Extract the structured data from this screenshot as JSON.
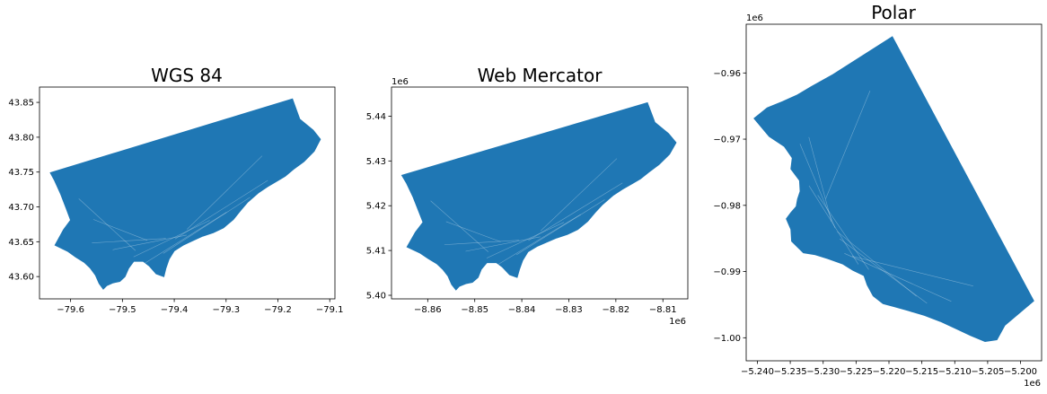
{
  "figure": {
    "background": "#ffffff"
  },
  "chart_data": [
    {
      "type": "map",
      "title": "WGS 84",
      "fill_color": "#1f77b4",
      "boundary_color": "#ffffff",
      "xlim": [
        -79.66,
        -79.09
      ],
      "ylim": [
        43.568,
        43.872
      ],
      "x_ticks": [
        -79.6,
        -79.5,
        -79.4,
        -79.3,
        -79.2,
        -79.1
      ],
      "x_tick_labels": [
        "−79.6",
        "−79.5",
        "−79.4",
        "−79.3",
        "−79.2",
        "−79.1"
      ],
      "y_ticks": [
        43.6,
        43.65,
        43.7,
        43.75,
        43.8,
        43.85
      ],
      "y_tick_labels": [
        "43.60",
        "43.65",
        "43.70",
        "43.75",
        "43.80",
        "43.85"
      ],
      "x_offset_label": "",
      "y_offset_label": "",
      "grid": false,
      "outline": [
        [
          -79.639,
          43.749
        ],
        [
          -79.172,
          43.855
        ],
        [
          -79.158,
          43.826
        ],
        [
          -79.132,
          43.81
        ],
        [
          -79.118,
          43.797
        ],
        [
          -79.13,
          43.78
        ],
        [
          -79.15,
          43.765
        ],
        [
          -79.17,
          43.754
        ],
        [
          -79.186,
          43.744
        ],
        [
          -79.202,
          43.737
        ],
        [
          -79.22,
          43.729
        ],
        [
          -79.238,
          43.72
        ],
        [
          -79.258,
          43.707
        ],
        [
          -79.272,
          43.695
        ],
        [
          -79.286,
          43.682
        ],
        [
          -79.305,
          43.67
        ],
        [
          -79.325,
          43.663
        ],
        [
          -79.345,
          43.658
        ],
        [
          -79.363,
          43.652
        ],
        [
          -79.383,
          43.645
        ],
        [
          -79.4,
          43.637
        ],
        [
          -79.41,
          43.625
        ],
        [
          -79.416,
          43.612
        ],
        [
          -79.42,
          43.6
        ],
        [
          -79.435,
          43.604
        ],
        [
          -79.448,
          43.615
        ],
        [
          -79.46,
          43.622
        ],
        [
          -79.478,
          43.622
        ],
        [
          -79.488,
          43.612
        ],
        [
          -79.495,
          43.6
        ],
        [
          -79.505,
          43.593
        ],
        [
          -79.518,
          43.591
        ],
        [
          -79.53,
          43.587
        ],
        [
          -79.537,
          43.582
        ],
        [
          -79.545,
          43.59
        ],
        [
          -79.552,
          43.602
        ],
        [
          -79.562,
          43.612
        ],
        [
          -79.573,
          43.62
        ],
        [
          -79.59,
          43.628
        ],
        [
          -79.605,
          43.636
        ],
        [
          -79.63,
          43.645
        ],
        [
          -79.614,
          43.667
        ],
        [
          -79.6,
          43.681
        ],
        [
          -79.608,
          43.697
        ],
        [
          -79.619,
          43.718
        ],
        [
          -79.631,
          43.738
        ]
      ]
    },
    {
      "type": "map",
      "title": "Web Mercator",
      "fill_color": "#1f77b4",
      "boundary_color": "#ffffff",
      "xlim": [
        -8.8677,
        -8.8047
      ],
      "ylim": [
        5.3992,
        5.4465
      ],
      "x_ticks": [
        -8.86,
        -8.85,
        -8.84,
        -8.83,
        -8.82,
        -8.81
      ],
      "x_tick_labels": [
        "−8.86",
        "−8.85",
        "−8.84",
        "−8.83",
        "−8.82",
        "−8.81"
      ],
      "y_ticks": [
        5.4,
        5.41,
        5.42,
        5.43,
        5.44
      ],
      "y_tick_labels": [
        "5.40",
        "5.41",
        "5.42",
        "5.43",
        "5.44"
      ],
      "x_offset_label": "1e6",
      "y_offset_label": "1e6",
      "grid": false,
      "outline": [
        [
          -8.8655,
          5.4268
        ],
        [
          -8.8133,
          5.443
        ],
        [
          -8.8117,
          5.4386
        ],
        [
          -8.8088,
          5.4361
        ],
        [
          -8.8072,
          5.4341
        ],
        [
          -8.8086,
          5.4315
        ],
        [
          -8.8108,
          5.4292
        ],
        [
          -8.813,
          5.4275
        ],
        [
          -8.8148,
          5.426
        ],
        [
          -8.8166,
          5.4249
        ],
        [
          -8.8186,
          5.4237
        ],
        [
          -8.8206,
          5.4223
        ],
        [
          -8.8228,
          5.4203
        ],
        [
          -8.8244,
          5.4185
        ],
        [
          -8.826,
          5.4165
        ],
        [
          -8.8281,
          5.4147
        ],
        [
          -8.8303,
          5.4136
        ],
        [
          -8.8326,
          5.4128
        ],
        [
          -8.8346,
          5.4119
        ],
        [
          -8.8368,
          5.4109
        ],
        [
          -8.8387,
          5.4097
        ],
        [
          -8.8398,
          5.4078
        ],
        [
          -8.8405,
          5.4058
        ],
        [
          -8.841,
          5.404
        ],
        [
          -8.8426,
          5.4046
        ],
        [
          -8.8441,
          5.4063
        ],
        [
          -8.8454,
          5.4073
        ],
        [
          -8.8474,
          5.4073
        ],
        [
          -8.8486,
          5.4058
        ],
        [
          -8.8493,
          5.404
        ],
        [
          -8.8505,
          5.4029
        ],
        [
          -8.8519,
          5.4026
        ],
        [
          -8.8533,
          5.402
        ],
        [
          -8.854,
          5.4012
        ],
        [
          -8.8549,
          5.4024
        ],
        [
          -8.8557,
          5.4043
        ],
        [
          -8.8568,
          5.4058
        ],
        [
          -8.858,
          5.407
        ],
        [
          -8.8599,
          5.4082
        ],
        [
          -8.8616,
          5.4094
        ],
        [
          -8.8644,
          5.4108
        ],
        [
          -8.8626,
          5.4141
        ],
        [
          -8.861,
          5.4163
        ],
        [
          -8.8619,
          5.4187
        ],
        [
          -8.8631,
          5.4219
        ],
        [
          -8.8645,
          5.425
        ]
      ]
    },
    {
      "type": "map",
      "title": "Polar",
      "fill_color": "#1f77b4",
      "boundary_color": "#ffffff",
      "xlim": [
        -5.2417,
        -5.1968
      ],
      "ylim": [
        -1.00348,
        -0.95264
      ],
      "x_ticks": [
        -5.24,
        -5.235,
        -5.23,
        -5.225,
        -5.22,
        -5.215,
        -5.21,
        -5.205,
        -5.2
      ],
      "x_tick_labels": [
        "−5.240",
        "−5.235",
        "−5.230",
        "−5.225",
        "−5.220",
        "−5.215",
        "−5.210",
        "−5.205",
        "−5.200"
      ],
      "y_ticks": [
        -0.96,
        -0.97,
        -0.98,
        -0.99,
        -1.0
      ],
      "y_tick_labels": [
        "−0.96",
        "−0.97",
        "−0.98",
        "−0.99",
        "−1.00"
      ],
      "x_offset_label": "1e6",
      "y_offset_label": "1e6",
      "grid": false,
      "outline": [
        [
          -5.2195,
          -0.95452
        ],
        [
          -5.198,
          -0.99444
        ],
        [
          -5.2024,
          -0.99813
        ],
        [
          -5.2036,
          -1.00029
        ],
        [
          -5.2054,
          -1.00057
        ],
        [
          -5.2076,
          -0.99966
        ],
        [
          -5.2098,
          -0.99862
        ],
        [
          -5.2122,
          -0.99753
        ],
        [
          -5.2146,
          -0.99662
        ],
        [
          -5.217,
          -0.99592
        ],
        [
          -5.2192,
          -0.99531
        ],
        [
          -5.2209,
          -0.99485
        ],
        [
          -5.2224,
          -0.99368
        ],
        [
          -5.2233,
          -0.99203
        ],
        [
          -5.2238,
          -0.99061
        ],
        [
          -5.2255,
          -0.9898
        ],
        [
          -5.227,
          -0.98887
        ],
        [
          -5.2293,
          -0.98804
        ],
        [
          -5.2312,
          -0.98745
        ],
        [
          -5.233,
          -0.98717
        ],
        [
          -5.2348,
          -0.98542
        ],
        [
          -5.2349,
          -0.98363
        ],
        [
          -5.2356,
          -0.98203
        ],
        [
          -5.2349,
          -0.98111
        ],
        [
          -5.2341,
          -0.98019
        ],
        [
          -5.2339,
          -0.97906
        ],
        [
          -5.2335,
          -0.97788
        ],
        [
          -5.2336,
          -0.97624
        ],
        [
          -5.2349,
          -0.97449
        ],
        [
          -5.2347,
          -0.97284
        ],
        [
          -5.2359,
          -0.9711
        ],
        [
          -5.2382,
          -0.96958
        ],
        [
          -5.2405,
          -0.96688
        ],
        [
          -5.2385,
          -0.96528
        ],
        [
          -5.2362,
          -0.96434
        ],
        [
          -5.2339,
          -0.96331
        ],
        [
          -5.2318,
          -0.96208
        ],
        [
          -5.2285,
          -0.96023
        ]
      ]
    }
  ]
}
